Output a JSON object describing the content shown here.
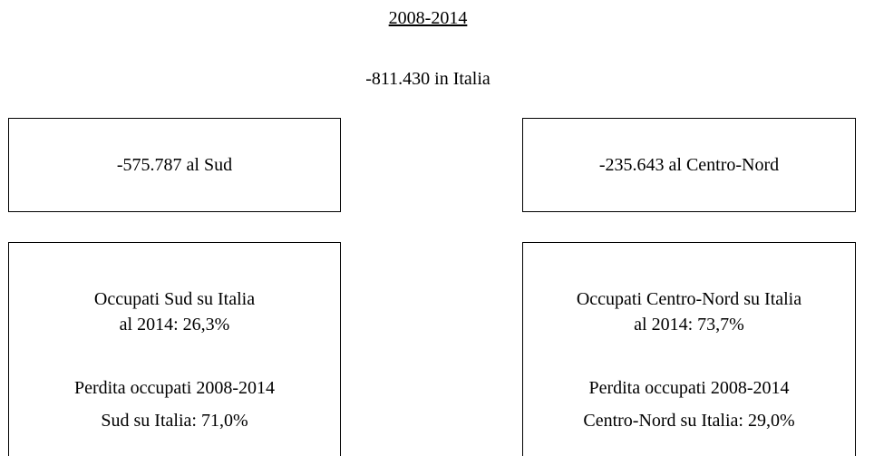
{
  "title": "2008-2014",
  "subtitle": "-811.430 in Italia",
  "boxes": [
    {
      "summary": "-575.787 al Sud",
      "details": [
        "Occupati Sud su Italia",
        "al 2014: 26,3%",
        "Perdita occupati 2008-2014",
        "Sud su Italia: 71,0%"
      ]
    },
    {
      "summary": "-235.643 al Centro-Nord",
      "details": [
        "Occupati Centro-Nord su Italia",
        "al 2014: 73,7%",
        "Perdita occupati 2008-2014",
        "Centro-Nord su Italia: 29,0%"
      ]
    }
  ]
}
